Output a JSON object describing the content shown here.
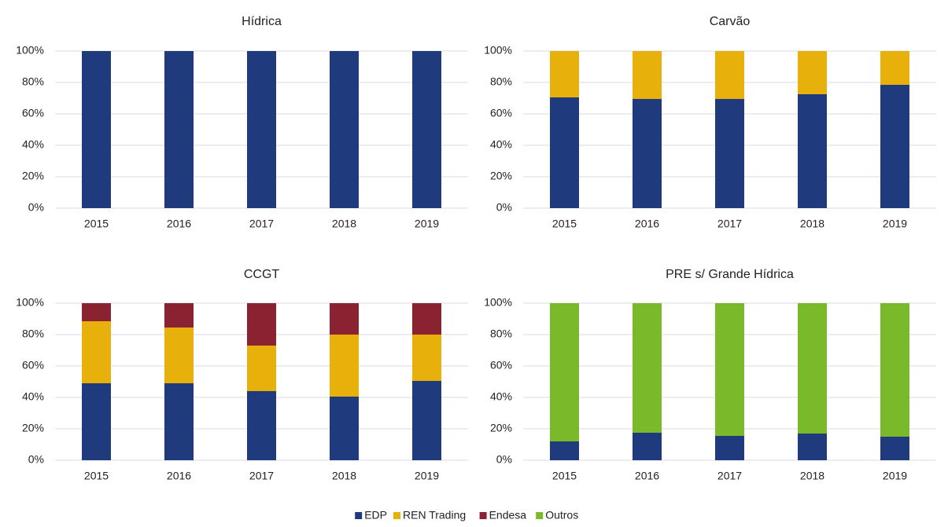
{
  "chart_data": [
    {
      "type": "bar",
      "stacked": true,
      "title": "Hídrica",
      "categories": [
        "2015",
        "2016",
        "2017",
        "2018",
        "2019"
      ],
      "series": [
        {
          "name": "EDP",
          "color": "#1f3a7d",
          "values": [
            100,
            100,
            100,
            100,
            100
          ]
        },
        {
          "name": "REN Trading",
          "color": "#e8b00a",
          "values": [
            0,
            0,
            0,
            0,
            0
          ]
        },
        {
          "name": "Endesa",
          "color": "#8b2232",
          "values": [
            0,
            0,
            0,
            0,
            0
          ]
        },
        {
          "name": "Outros",
          "color": "#7ab929",
          "values": [
            0,
            0,
            0,
            0,
            0
          ]
        }
      ],
      "ylim": [
        0,
        100
      ],
      "yticks": [
        {
          "value": 0,
          "label": "0%"
        },
        {
          "value": 20,
          "label": "20%"
        },
        {
          "value": 40,
          "label": "40%"
        },
        {
          "value": 60,
          "label": "60%"
        },
        {
          "value": 80,
          "label": "80%"
        },
        {
          "value": 100,
          "label": "100%"
        }
      ],
      "grid": true
    },
    {
      "type": "bar",
      "stacked": true,
      "title": "Carvão",
      "categories": [
        "2015",
        "2016",
        "2017",
        "2018",
        "2019"
      ],
      "series": [
        {
          "name": "EDP",
          "color": "#1f3a7d",
          "values": [
            70.5,
            69.5,
            69.5,
            72.5,
            78.5
          ]
        },
        {
          "name": "REN Trading",
          "color": "#e8b00a",
          "values": [
            29.5,
            30.5,
            30.5,
            27.5,
            21.5
          ]
        },
        {
          "name": "Endesa",
          "color": "#8b2232",
          "values": [
            0,
            0,
            0,
            0,
            0
          ]
        },
        {
          "name": "Outros",
          "color": "#7ab929",
          "values": [
            0,
            0,
            0,
            0,
            0
          ]
        }
      ],
      "ylim": [
        0,
        100
      ],
      "yticks": [
        {
          "value": 0,
          "label": "0%"
        },
        {
          "value": 20,
          "label": "20%"
        },
        {
          "value": 40,
          "label": "40%"
        },
        {
          "value": 60,
          "label": "60%"
        },
        {
          "value": 80,
          "label": "80%"
        },
        {
          "value": 100,
          "label": "100%"
        }
      ],
      "grid": true
    },
    {
      "type": "bar",
      "stacked": true,
      "title": "CCGT",
      "categories": [
        "2015",
        "2016",
        "2017",
        "2018",
        "2019"
      ],
      "series": [
        {
          "name": "EDP",
          "color": "#1f3a7d",
          "values": [
            49,
            49,
            44,
            40.5,
            50.5
          ]
        },
        {
          "name": "REN Trading",
          "color": "#e8b00a",
          "values": [
            39.5,
            35.5,
            29,
            39.5,
            29.5
          ]
        },
        {
          "name": "Endesa",
          "color": "#8b2232",
          "values": [
            11.5,
            15.5,
            27,
            20,
            20
          ]
        },
        {
          "name": "Outros",
          "color": "#7ab929",
          "values": [
            0,
            0,
            0,
            0,
            0
          ]
        }
      ],
      "ylim": [
        0,
        100
      ],
      "yticks": [
        {
          "value": 0,
          "label": "0%"
        },
        {
          "value": 20,
          "label": "20%"
        },
        {
          "value": 40,
          "label": "40%"
        },
        {
          "value": 60,
          "label": "60%"
        },
        {
          "value": 80,
          "label": "80%"
        },
        {
          "value": 100,
          "label": "100%"
        }
      ],
      "grid": true
    },
    {
      "type": "bar",
      "stacked": true,
      "title": "PRE s/ Grande Hídrica",
      "categories": [
        "2015",
        "2016",
        "2017",
        "2018",
        "2019"
      ],
      "series": [
        {
          "name": "EDP",
          "color": "#1f3a7d",
          "values": [
            12,
            17.5,
            15.5,
            17,
            15
          ]
        },
        {
          "name": "REN Trading",
          "color": "#e8b00a",
          "values": [
            0,
            0,
            0,
            0,
            0
          ]
        },
        {
          "name": "Endesa",
          "color": "#8b2232",
          "values": [
            0,
            0,
            0,
            0,
            0
          ]
        },
        {
          "name": "Outros",
          "color": "#7ab929",
          "values": [
            88,
            82.5,
            84.5,
            83,
            85
          ]
        }
      ],
      "ylim": [
        0,
        100
      ],
      "yticks": [
        {
          "value": 0,
          "label": "0%"
        },
        {
          "value": 20,
          "label": "20%"
        },
        {
          "value": 40,
          "label": "40%"
        },
        {
          "value": 60,
          "label": "60%"
        },
        {
          "value": 80,
          "label": "80%"
        },
        {
          "value": 100,
          "label": "100%"
        }
      ],
      "grid": true
    }
  ]
}
